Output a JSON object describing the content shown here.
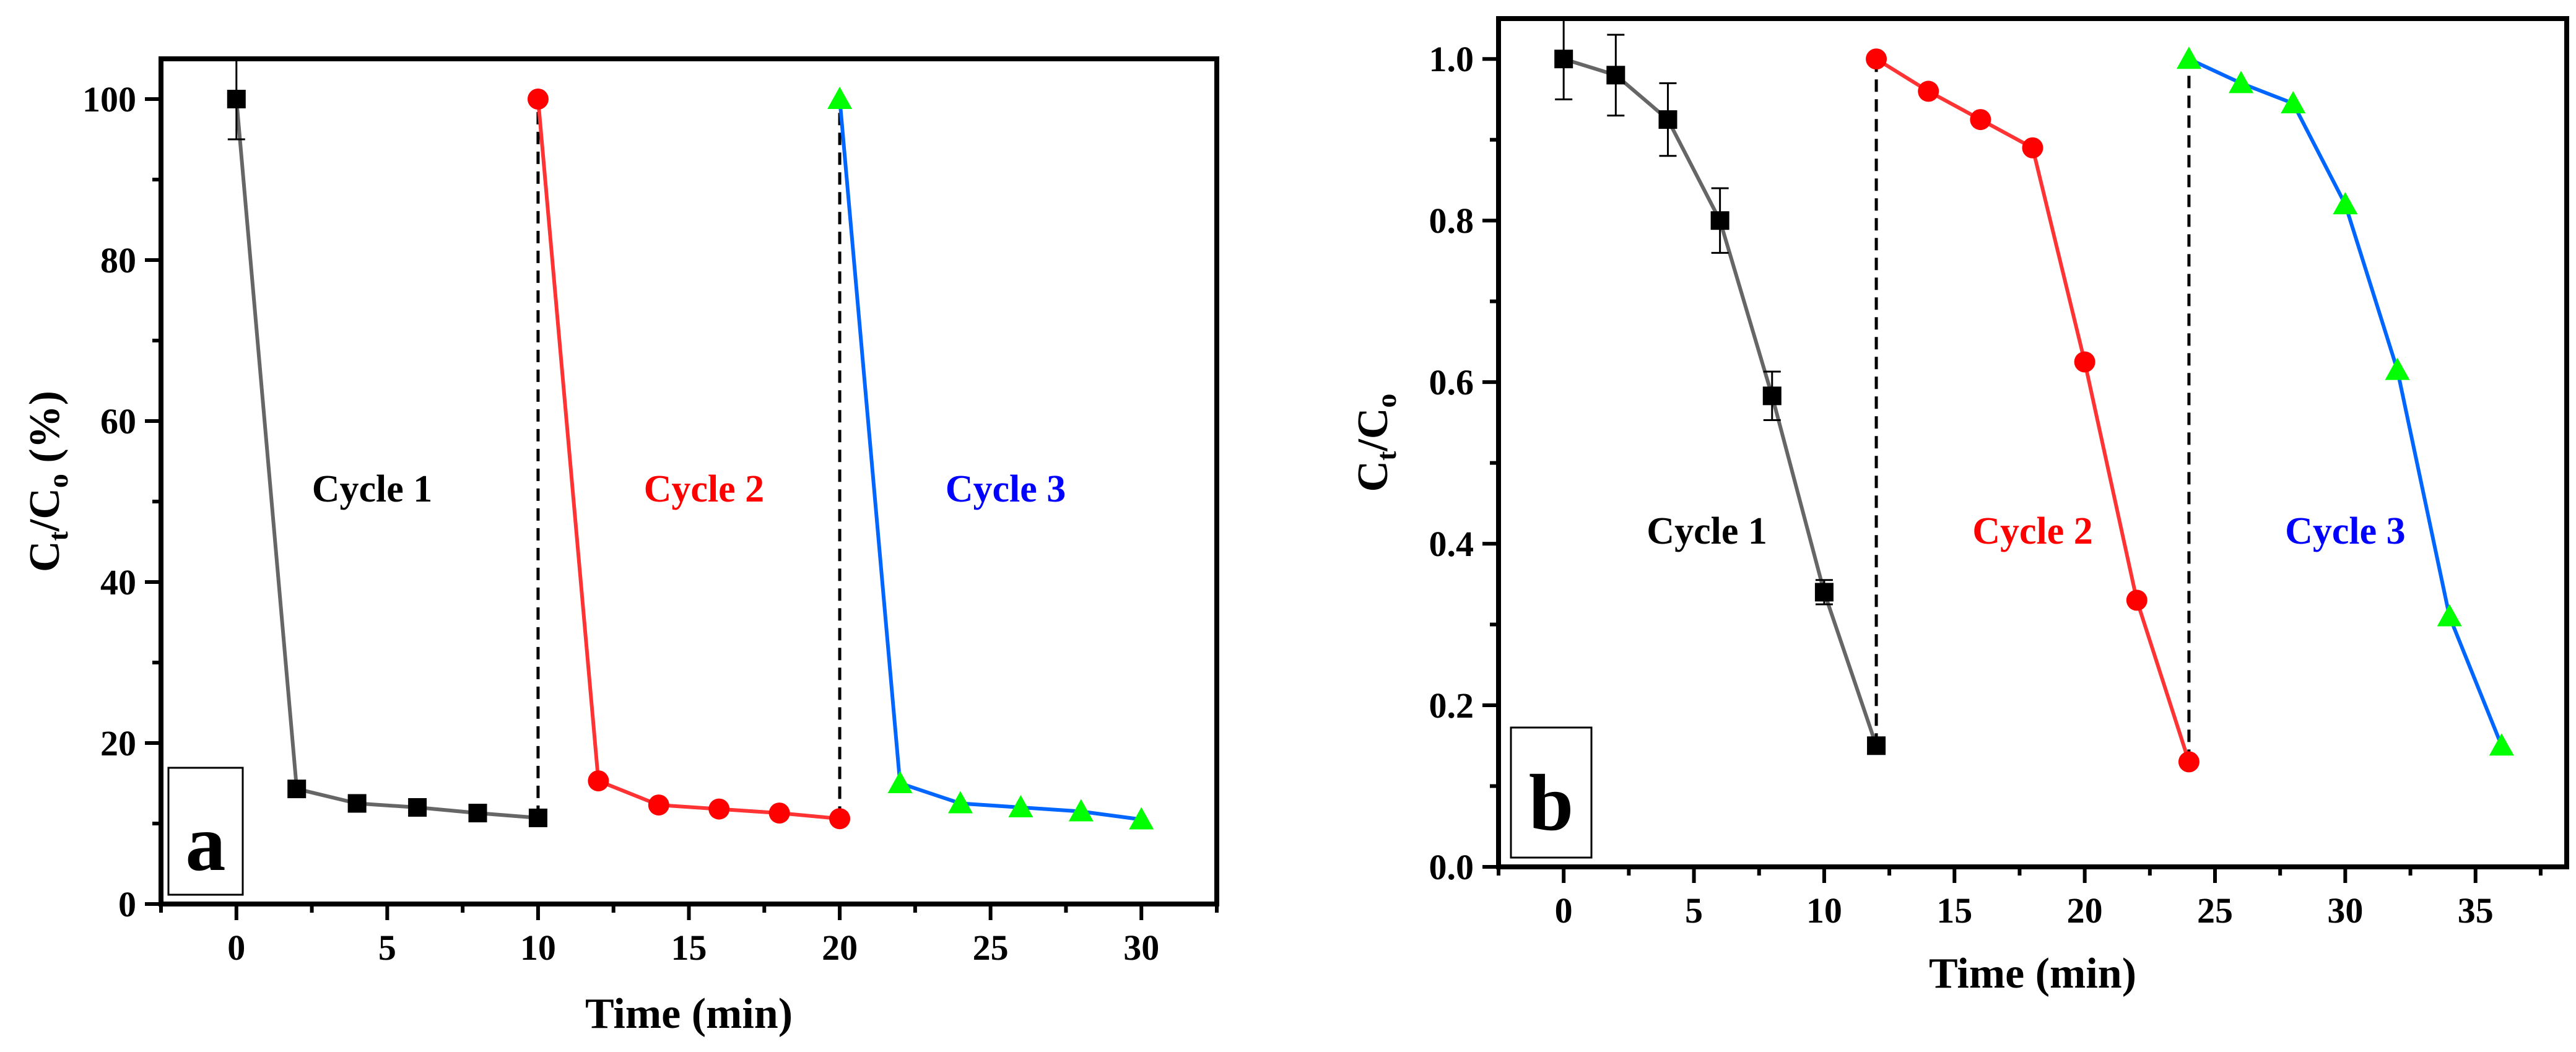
{
  "chart_data": [
    {
      "type": "line",
      "panel_label": "a",
      "xlabel": "Time (min)",
      "ylabel": {
        "main": "C",
        "sub1": "t",
        "mid": "/C",
        "sub2": "o",
        "suffix": " (%)"
      },
      "xlim": [
        -2.5,
        32.5
      ],
      "ylim": [
        0,
        105
      ],
      "xticks": [
        0,
        5,
        10,
        15,
        20,
        25,
        30
      ],
      "yticks": [
        0,
        20,
        40,
        60,
        80,
        100
      ],
      "grid": false,
      "annotations": [
        {
          "text": "Cycle 1",
          "color": "#000000",
          "x": 4.5,
          "y": 50
        },
        {
          "text": "Cycle 2",
          "color": "#ff0000",
          "x": 15.5,
          "y": 50
        },
        {
          "text": "Cycle 3",
          "color": "#0000ff",
          "x": 25.5,
          "y": 50
        }
      ],
      "dividers": [
        {
          "x": 10,
          "y_from": 10.7,
          "y_to": 100
        },
        {
          "x": 20,
          "y_from": 10.6,
          "y_to": 100
        }
      ],
      "series": [
        {
          "name": "Cycle 1",
          "line_color": "#666666",
          "marker": "square",
          "marker_color": "#000000",
          "x": [
            0,
            2,
            4,
            6,
            8,
            10
          ],
          "y": [
            100,
            14.3,
            12.5,
            12.0,
            11.3,
            10.7
          ],
          "error": [
            5,
            0,
            0,
            0,
            0,
            0
          ]
        },
        {
          "name": "Cycle 2",
          "line_color": "#ff3333",
          "marker": "circle",
          "marker_color": "#ff0000",
          "x": [
            10,
            12,
            14,
            16,
            18,
            20
          ],
          "y": [
            100,
            15.3,
            12.3,
            11.8,
            11.3,
            10.6
          ],
          "error": [
            0,
            0,
            0,
            0,
            0,
            0
          ]
        },
        {
          "name": "Cycle 3",
          "line_color": "#0066ff",
          "marker": "triangle",
          "marker_color": "#00ff00",
          "x": [
            20,
            22,
            24,
            26,
            28,
            30
          ],
          "y": [
            100,
            15.0,
            12.5,
            12.0,
            11.5,
            10.5
          ],
          "error": [
            0,
            0,
            0,
            0,
            0,
            0
          ]
        }
      ]
    },
    {
      "type": "line",
      "panel_label": "b",
      "xlabel": "Time (min)",
      "ylabel": {
        "main": "C",
        "sub1": "t",
        "mid": "/C",
        "sub2": "o",
        "suffix": ""
      },
      "xlim": [
        -2.5,
        38.5
      ],
      "ylim": [
        0,
        1.05
      ],
      "xticks": [
        0,
        5,
        10,
        15,
        20,
        25,
        30,
        35
      ],
      "yticks": [
        0.0,
        0.2,
        0.4,
        0.6,
        0.8,
        1.0
      ],
      "ytick_decimals": 1,
      "grid": false,
      "annotations": [
        {
          "text": "Cycle 1",
          "color": "#000000",
          "x": 5.5,
          "y": 0.4
        },
        {
          "text": "Cycle 2",
          "color": "#ff0000",
          "x": 18,
          "y": 0.4
        },
        {
          "text": "Cycle 3",
          "color": "#0000ff",
          "x": 30,
          "y": 0.4
        }
      ],
      "dividers": [
        {
          "x": 12,
          "y_from": 0.15,
          "y_to": 1.0
        },
        {
          "x": 24,
          "y_from": 0.13,
          "y_to": 1.0
        }
      ],
      "series": [
        {
          "name": "Cycle 1",
          "line_color": "#666666",
          "marker": "square",
          "marker_color": "#000000",
          "x": [
            0,
            2,
            4,
            6,
            8,
            10,
            12
          ],
          "y": [
            1.0,
            0.98,
            0.925,
            0.8,
            0.583,
            0.34,
            0.15
          ],
          "error": [
            0.05,
            0.05,
            0.045,
            0.04,
            0.03,
            0.015,
            0
          ]
        },
        {
          "name": "Cycle 2",
          "line_color": "#ff3333",
          "marker": "circle",
          "marker_color": "#ff0000",
          "x": [
            12,
            14,
            16,
            18,
            20,
            22,
            24
          ],
          "y": [
            1.0,
            0.96,
            0.925,
            0.89,
            0.625,
            0.33,
            0.13
          ],
          "error": [
            0,
            0,
            0,
            0,
            0,
            0,
            0
          ]
        },
        {
          "name": "Cycle 3",
          "line_color": "#0066ff",
          "marker": "triangle",
          "marker_color": "#00ff00",
          "x": [
            24,
            26,
            28,
            30,
            32,
            34,
            36
          ],
          "y": [
            1.0,
            0.97,
            0.945,
            0.82,
            0.615,
            0.31,
            0.15
          ],
          "error": [
            0,
            0,
            0,
            0,
            0,
            0,
            0
          ]
        }
      ]
    }
  ]
}
